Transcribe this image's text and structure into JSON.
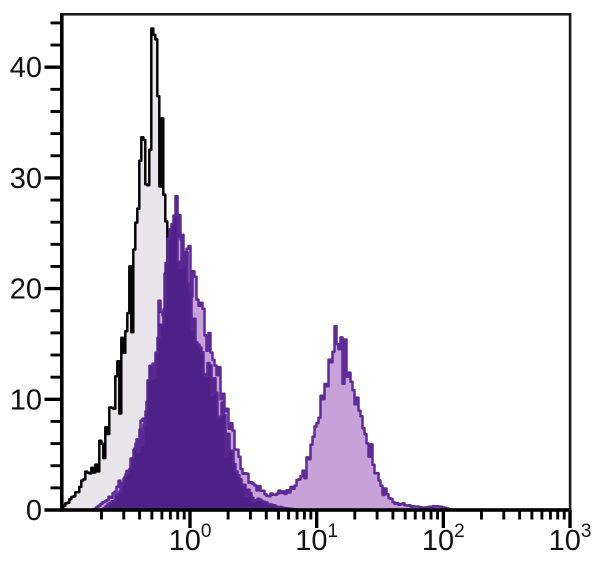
{
  "figure": {
    "background": "#ffffff",
    "description": "Flow cytometry single-parameter histogram overlay: black open histogram (light gray fill), dark purple filled histogram (negative peak with spike), and lavender filled bimodal histogram with purple outline (positive peak near 15)."
  },
  "colors": {
    "frame": "#1a1a1a",
    "axis": "#000000",
    "black_series_stroke": "#050505",
    "black_series_fill": "#e8e6ea",
    "purple_outline": "#5e2b96",
    "dark_purple_fill": "#4d2187",
    "dark_purple_stroke": "#58278f",
    "lavender_fill": "#c7a2d8"
  },
  "chart_data": {
    "type": "area",
    "subtype": "flow-cytometry-histogram-overlay",
    "title": "",
    "xlabel": "",
    "ylabel": "",
    "grid": false,
    "legend": false,
    "x_axis": {
      "scale": "log10",
      "range": [
        0.1,
        1000
      ],
      "major_ticks": [
        1,
        10,
        100,
        1000
      ],
      "major_tick_labels": [
        {
          "base": "10",
          "exponent": "0"
        },
        {
          "base": "10",
          "exponent": "1"
        },
        {
          "base": "10",
          "exponent": "2"
        },
        {
          "base": "10",
          "exponent": "3"
        }
      ],
      "minor_tick_digits": [
        2,
        3,
        4,
        5,
        6,
        7,
        8,
        9
      ],
      "minor_tick_decades": [
        -1,
        0,
        1,
        2
      ]
    },
    "y_axis": {
      "range": [
        0,
        45
      ],
      "major_ticks": [
        0,
        10,
        20,
        30,
        40
      ],
      "major_tick_labels": [
        "0",
        "10",
        "20",
        "30",
        "40"
      ],
      "minor_tick_step": 2,
      "minor_tick_max": 44
    },
    "series": [
      {
        "name": "open-black-control",
        "style": "open-outline-gray-fill",
        "stroke": "#050505",
        "fill": "#e8e6ea",
        "peak": {
          "x": 0.5,
          "y": 43
        },
        "clip_max": 43.5,
        "seed": 11,
        "noise": {
          "base": 0.78,
          "amp": 0.4,
          "spike_p": 0.08,
          "dip_p": 0.1
        },
        "points": [
          [
            0.1,
            0.4
          ],
          [
            0.115,
            1.2
          ],
          [
            0.13,
            2
          ],
          [
            0.15,
            3
          ],
          [
            0.17,
            3.5
          ],
          [
            0.19,
            5
          ],
          [
            0.215,
            7
          ],
          [
            0.24,
            9
          ],
          [
            0.27,
            12
          ],
          [
            0.3,
            15
          ],
          [
            0.33,
            19
          ],
          [
            0.36,
            23
          ],
          [
            0.39,
            27
          ],
          [
            0.42,
            31
          ],
          [
            0.45,
            34.5
          ],
          [
            0.48,
            38.5
          ],
          [
            0.5,
            41
          ],
          [
            0.52,
            37.5
          ],
          [
            0.545,
            39
          ],
          [
            0.57,
            36.5
          ],
          [
            0.6,
            34
          ],
          [
            0.63,
            31.5
          ],
          [
            0.66,
            29
          ],
          [
            0.7,
            26
          ],
          [
            0.74,
            23
          ],
          [
            0.78,
            19.5
          ],
          [
            0.83,
            16
          ],
          [
            0.88,
            13
          ],
          [
            0.93,
            11.5
          ],
          [
            1.0,
            9.5
          ],
          [
            1.06,
            7.5
          ],
          [
            1.12,
            5.5
          ],
          [
            1.2,
            3.8
          ],
          [
            1.3,
            2.4
          ],
          [
            1.42,
            1.4
          ],
          [
            1.56,
            0.7
          ],
          [
            1.72,
            0.3
          ],
          [
            1.9,
            0.1
          ],
          [
            2.05,
            0
          ]
        ]
      },
      {
        "name": "lavender-filled-bimodal",
        "style": "filled-outline",
        "stroke": "#5e2b96",
        "fill": "#c7a2d8",
        "peak": {
          "x": 15,
          "y": 16.5
        },
        "clip_max": 27.5,
        "seed": 7,
        "noise": {
          "base": 0.86,
          "amp": 0.26,
          "spike_p": 0.06,
          "dip_p": 0.06
        },
        "points": [
          [
            0.17,
            0
          ],
          [
            0.2,
            0.6
          ],
          [
            0.24,
            1.3
          ],
          [
            0.28,
            2.3
          ],
          [
            0.33,
            3.8
          ],
          [
            0.38,
            6
          ],
          [
            0.44,
            9
          ],
          [
            0.5,
            12.5
          ],
          [
            0.55,
            15.5
          ],
          [
            0.6,
            18.5
          ],
          [
            0.65,
            21
          ],
          [
            0.7,
            23.2
          ],
          [
            0.76,
            25
          ],
          [
            0.81,
            25
          ],
          [
            0.86,
            24
          ],
          [
            0.92,
            22.8
          ],
          [
            1.0,
            21.5
          ],
          [
            1.1,
            19.5
          ],
          [
            1.25,
            17
          ],
          [
            1.45,
            14.2
          ],
          [
            1.75,
            11
          ],
          [
            2.1,
            7
          ],
          [
            2.5,
            4
          ],
          [
            3.0,
            2.3
          ],
          [
            3.5,
            1.7
          ],
          [
            4.2,
            1.4
          ],
          [
            5.0,
            1.4
          ],
          [
            6.0,
            1.8
          ],
          [
            7.0,
            2.5
          ],
          [
            8.0,
            3.7
          ],
          [
            9.0,
            5.6
          ],
          [
            10.0,
            8.2
          ],
          [
            11.0,
            10.6
          ],
          [
            12.0,
            12.6
          ],
          [
            13.5,
            14.6
          ],
          [
            15.0,
            15.9
          ],
          [
            16.5,
            14.9
          ],
          [
            18.0,
            13
          ],
          [
            20.0,
            10.6
          ],
          [
            22.0,
            8.2
          ],
          [
            25.0,
            5.6
          ],
          [
            28.0,
            3.9
          ],
          [
            32.0,
            2.4
          ],
          [
            36.0,
            1.3
          ],
          [
            40.0,
            0.7
          ],
          [
            45.0,
            0.5
          ],
          [
            52.0,
            0.45
          ],
          [
            60.0,
            0.3
          ],
          [
            70.0,
            0.2
          ],
          [
            82.0,
            0.35
          ],
          [
            95.0,
            0.3
          ],
          [
            105.0,
            0.15
          ],
          [
            115.0,
            0
          ]
        ]
      },
      {
        "name": "dark-purple-filled",
        "style": "filled-outline",
        "stroke": "#58278f",
        "fill": "#4d2187",
        "peak": {
          "x": 0.76,
          "y": 32
        },
        "clip_max": 32.2,
        "seed": 23,
        "noise": {
          "base": 0.86,
          "amp": 0.26,
          "spike_p": 0.05,
          "dip_p": 0.06
        },
        "points": [
          [
            0.2,
            0
          ],
          [
            0.24,
            0.9
          ],
          [
            0.28,
            1.9
          ],
          [
            0.33,
            3.6
          ],
          [
            0.38,
            6
          ],
          [
            0.43,
            9
          ],
          [
            0.48,
            12.5
          ],
          [
            0.53,
            15.5
          ],
          [
            0.58,
            18.5
          ],
          [
            0.63,
            21
          ],
          [
            0.68,
            23.5
          ],
          [
            0.72,
            25
          ],
          [
            0.745,
            26.5
          ],
          [
            0.755,
            31.8
          ],
          [
            0.768,
            31.0
          ],
          [
            0.78,
            26
          ],
          [
            0.82,
            24.5
          ],
          [
            0.87,
            22.5
          ],
          [
            0.93,
            21
          ],
          [
            1.0,
            19.5
          ],
          [
            1.08,
            17.5
          ],
          [
            1.18,
            15.5
          ],
          [
            1.32,
            13
          ],
          [
            1.5,
            11.5
          ],
          [
            1.73,
            9.3
          ],
          [
            2.0,
            6
          ],
          [
            2.3,
            3.5
          ],
          [
            2.7,
            1.9
          ],
          [
            3.2,
            1.1
          ],
          [
            3.8,
            0.7
          ],
          [
            4.5,
            0.4
          ],
          [
            5.5,
            0.2
          ],
          [
            6.5,
            0.08
          ],
          [
            7.5,
            0
          ]
        ]
      }
    ]
  }
}
